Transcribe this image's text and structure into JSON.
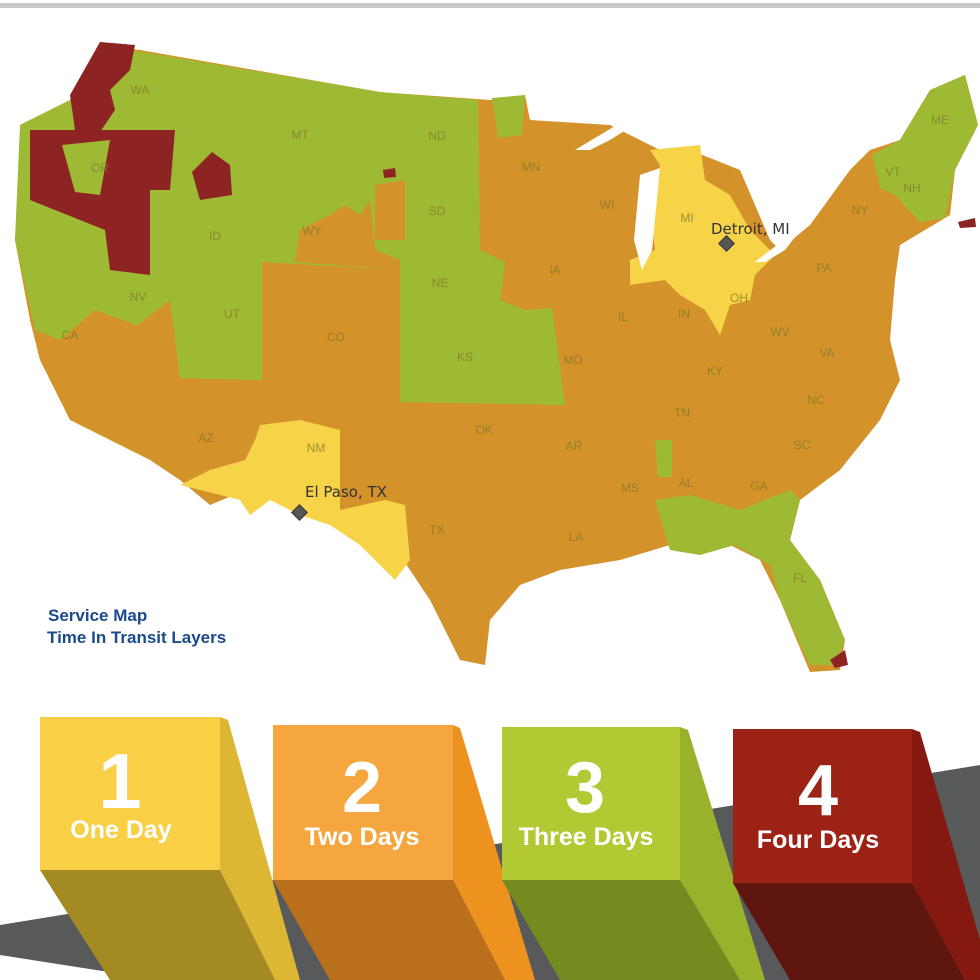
{
  "colors": {
    "one_day": "#F7D348",
    "two_days": "#D4922A",
    "three_days": "#9EBA34",
    "four_days": "#8E2323"
  },
  "legend": {
    "title": "Service Map",
    "subtitle": "Time In Transit Layers"
  },
  "cities": [
    {
      "name": "Detroit, MI",
      "icon": "diamond-marker-icon"
    },
    {
      "name": "El Paso, TX",
      "icon": "diamond-marker-icon"
    }
  ],
  "states": [
    "WA",
    "OR",
    "CA",
    "NV",
    "ID",
    "MT",
    "WY",
    "UT",
    "CO",
    "AZ",
    "NM",
    "ND",
    "SD",
    "NE",
    "KS",
    "OK",
    "TX",
    "MN",
    "IA",
    "MO",
    "AR",
    "LA",
    "WI",
    "IL",
    "MI",
    "IN",
    "OH",
    "KY",
    "TN",
    "MS",
    "AL",
    "GA",
    "FL",
    "SC",
    "NC",
    "VA",
    "WV",
    "PA",
    "NY",
    "VT",
    "NH",
    "ME"
  ],
  "tiers": [
    {
      "number": "1",
      "label": "One Day"
    },
    {
      "number": "2",
      "label": "Two Days"
    },
    {
      "number": "3",
      "label": "Three Days"
    },
    {
      "number": "4",
      "label": "Four Days"
    }
  ]
}
